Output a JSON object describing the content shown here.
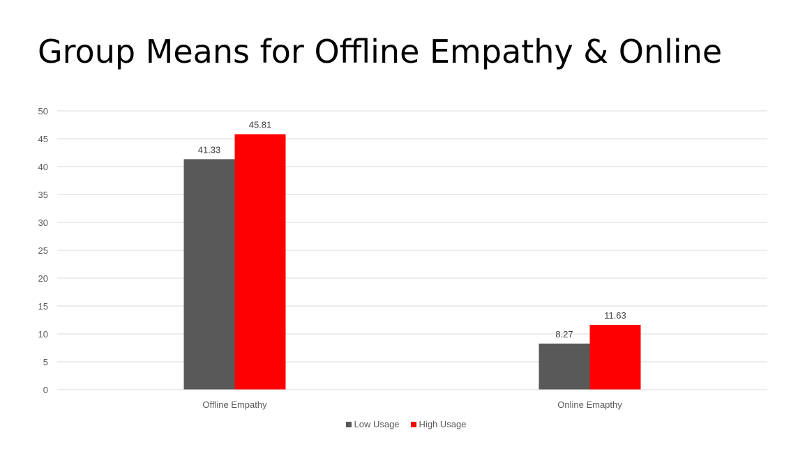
{
  "chart_data": {
    "type": "bar",
    "title": "Group Means for Offline Empathy & Online",
    "categories": [
      "Offline Empathy",
      "Online Emapthy"
    ],
    "series": [
      {
        "name": "Low Usage",
        "values": [
          41.33,
          8.27
        ],
        "labels": [
          "41.33",
          "8.27"
        ],
        "color": "#595959"
      },
      {
        "name": "High Usage",
        "values": [
          45.81,
          11.63
        ],
        "labels": [
          "45.81",
          "11.63"
        ],
        "color": "#ff0000"
      }
    ],
    "ylim": [
      0,
      50
    ],
    "yticks": [
      "0",
      "5",
      "10",
      "15",
      "20",
      "25",
      "30",
      "35",
      "40",
      "45",
      "50"
    ],
    "grid": true,
    "legend_position": "bottom"
  }
}
